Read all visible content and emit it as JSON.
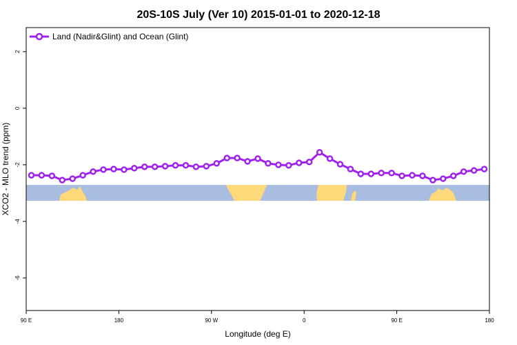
{
  "chart_data": {
    "type": "line",
    "title": "20S-10S July (Ver 10)   2015-01-01 to 2020-12-18",
    "x_label": "Longitude (deg E)",
    "y_label": "XCO2 - MLO trend (ppm)",
    "legend_position": "top-left",
    "xlim": [
      90,
      540
    ],
    "ylim": [
      -7.15,
      2.85
    ],
    "xticks": [
      {
        "value": 90,
        "label": "90 E"
      },
      {
        "value": 180,
        "label": "180"
      },
      {
        "value": 270,
        "label": "90 W"
      },
      {
        "value": 360,
        "label": "0"
      },
      {
        "value": 450,
        "label": "90 E"
      },
      {
        "value": 540,
        "label": "180"
      }
    ],
    "yticks": [
      2,
      0,
      -2,
      -4,
      -6
    ],
    "x": [
      95,
      105,
      115,
      125,
      135,
      145,
      155,
      165,
      175,
      185,
      195,
      205,
      215,
      225,
      235,
      245,
      255,
      265,
      275,
      285,
      295,
      305,
      315,
      325,
      335,
      345,
      355,
      365,
      375,
      385,
      395,
      405,
      415,
      425,
      435,
      445,
      455,
      465,
      475,
      485,
      495,
      505,
      515,
      525,
      535
    ],
    "series": [
      {
        "name": "Land (Nadir&Glint) and Ocean (Glint)",
        "color": "#a020f0",
        "values": [
          -2.37,
          -2.37,
          -2.39,
          -2.54,
          -2.49,
          -2.37,
          -2.24,
          -2.17,
          -2.15,
          -2.17,
          -2.12,
          -2.07,
          -2.07,
          -2.05,
          -2.02,
          -2.02,
          -2.07,
          -2.05,
          -1.95,
          -1.76,
          -1.76,
          -1.88,
          -1.78,
          -1.95,
          -2.0,
          -2.02,
          -1.93,
          -1.9,
          -1.56,
          -1.78,
          -1.98,
          -2.15,
          -2.32,
          -2.32,
          -2.29,
          -2.29,
          -2.39,
          -2.37,
          -2.39,
          -2.54,
          -2.49,
          -2.39,
          -2.24,
          -2.2,
          -2.15
        ]
      }
    ]
  }
}
